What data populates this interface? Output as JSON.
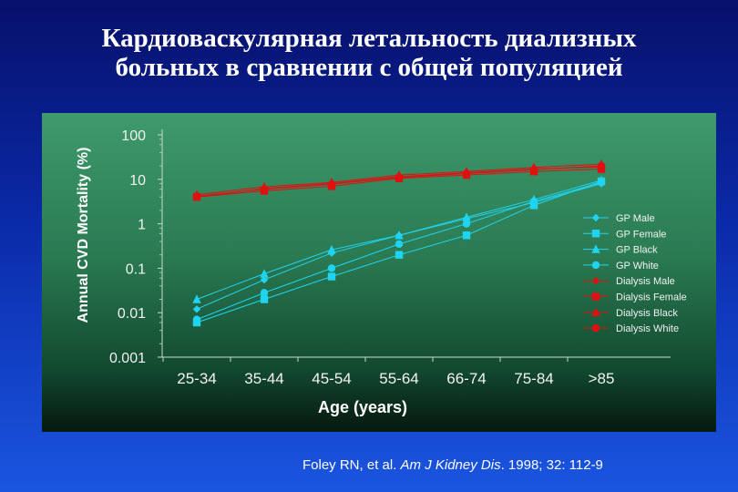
{
  "title_line1": "Кардиоваскулярная летальность диализных",
  "title_line2": "больных в сравнении с общей популяцией",
  "citation": {
    "authors": "Foley RN, et al. ",
    "journal": "Am J Kidney Dis",
    "rest": ". 1998; 32: 112-9"
  },
  "colors": {
    "gp": "#1fd4f0",
    "dialysis": "#e01010",
    "panel": "#2f8a5e"
  },
  "chart_data": {
    "type": "line",
    "x_label": "Age (years)",
    "y_label": "Annual CVD Mortality (%)",
    "y_scale": "log",
    "ylim": [
      0.001,
      100
    ],
    "y_ticks": [
      "100",
      "10",
      "1",
      "0.1",
      "0.01",
      "0.001"
    ],
    "categories": [
      "25-34",
      "35-44",
      "45-54",
      "55-64",
      "66-74",
      "75-84",
      ">85"
    ],
    "legend_position": "right",
    "series": [
      {
        "name": "GP Male",
        "marker": "diamond",
        "group": "gp",
        "values": [
          0.012,
          0.055,
          0.22,
          0.55,
          1.3,
          3.0,
          8.0
        ]
      },
      {
        "name": "GP Female",
        "marker": "square",
        "group": "gp",
        "values": [
          0.006,
          0.02,
          0.065,
          0.2,
          0.55,
          2.6,
          9.0
        ]
      },
      {
        "name": "GP Black",
        "marker": "triangle",
        "group": "gp",
        "values": [
          0.02,
          0.075,
          0.26,
          0.55,
          1.4,
          3.5,
          9.5
        ]
      },
      {
        "name": "GP White",
        "marker": "circle",
        "group": "gp",
        "values": [
          0.007,
          0.028,
          0.1,
          0.35,
          1.0,
          3.2,
          8.5
        ]
      },
      {
        "name": "Dialysis Male",
        "marker": "diamond",
        "group": "dialysis",
        "values": [
          4.0,
          6.2,
          8.0,
          11.5,
          14.0,
          17.0,
          19.0
        ]
      },
      {
        "name": "Dialysis Female",
        "marker": "square",
        "group": "dialysis",
        "values": [
          4.0,
          5.5,
          7.0,
          10.5,
          12.5,
          15.0,
          17.0
        ]
      },
      {
        "name": "Dialysis Black",
        "marker": "triangle",
        "group": "dialysis",
        "values": [
          4.5,
          6.8,
          8.5,
          12.5,
          15.0,
          18.5,
          22.0
        ]
      },
      {
        "name": "Dialysis White",
        "marker": "circle",
        "group": "dialysis",
        "values": [
          4.2,
          6.0,
          7.8,
          11.0,
          13.5,
          16.5,
          20.0
        ]
      }
    ]
  }
}
